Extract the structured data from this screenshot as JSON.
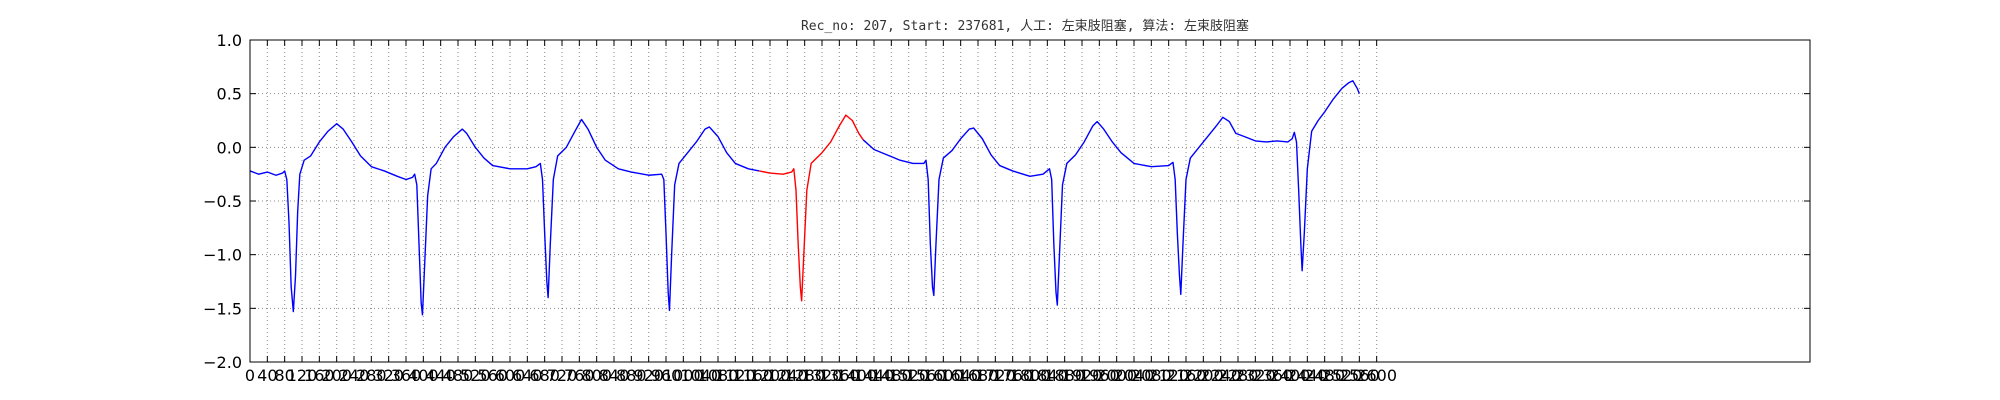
{
  "chart_data": {
    "type": "line",
    "title": "Rec_no: 207, Start: 237681, 人工: 左束肢阻塞, 算法: 左束肢阻塞",
    "xlabel": "",
    "ylabel": "",
    "xlim": [
      0,
      3600
    ],
    "ylim": [
      -2.0,
      1.0
    ],
    "grid": true,
    "yticks": [
      1.0,
      0.5,
      0.0,
      -0.5,
      -1.0,
      -1.5,
      -2.0
    ],
    "ytick_labels": [
      "1.0",
      "0.5",
      "0.0",
      "−0.5",
      "−1.0",
      "−1.5",
      "−2.0"
    ],
    "xticks": [
      0,
      40,
      80,
      120,
      160,
      200,
      240,
      280,
      320,
      360,
      400,
      440,
      480,
      520,
      560,
      600,
      640,
      680,
      720,
      760,
      800,
      840,
      880,
      920,
      960,
      1000,
      1040,
      1080,
      1120,
      1160,
      1200,
      1240,
      1280,
      1320,
      1360,
      1400,
      1440,
      1480,
      1520,
      1560,
      1600,
      1640,
      1680,
      1720,
      1760,
      1800,
      1840,
      1880,
      1920,
      1960,
      2000,
      2040,
      2080,
      2120,
      2160,
      2200,
      2240,
      2280,
      2320,
      2360,
      2400,
      2440,
      2480,
      2520,
      2560,
      2600
    ],
    "colors": {
      "normal": "#0000ff",
      "highlight": "#ff0000",
      "grid": "#000000"
    },
    "series": [
      {
        "color": "#0000ff",
        "points": [
          [
            0,
            -0.22
          ],
          [
            20,
            -0.25
          ],
          [
            40,
            -0.23
          ],
          [
            60,
            -0.26
          ],
          [
            75,
            -0.24
          ],
          [
            80,
            -0.22
          ],
          [
            85,
            -0.3
          ],
          [
            90,
            -0.7
          ],
          [
            95,
            -1.3
          ],
          [
            100,
            -1.53
          ],
          [
            105,
            -1.2
          ],
          [
            110,
            -0.6
          ],
          [
            115,
            -0.25
          ],
          [
            125,
            -0.12
          ],
          [
            140,
            -0.08
          ],
          [
            160,
            0.05
          ],
          [
            180,
            0.15
          ],
          [
            200,
            0.22
          ],
          [
            215,
            0.17
          ],
          [
            235,
            0.05
          ],
          [
            255,
            -0.08
          ],
          [
            280,
            -0.18
          ],
          [
            310,
            -0.22
          ],
          [
            340,
            -0.27
          ],
          [
            360,
            -0.3
          ],
          [
            375,
            -0.28
          ],
          [
            380,
            -0.25
          ],
          [
            385,
            -0.35
          ],
          [
            390,
            -0.9
          ],
          [
            395,
            -1.45
          ],
          [
            398,
            -1.56
          ],
          [
            403,
            -1.1
          ],
          [
            410,
            -0.45
          ],
          [
            418,
            -0.2
          ],
          [
            430,
            -0.15
          ],
          [
            450,
            0.0
          ],
          [
            470,
            0.1
          ],
          [
            490,
            0.17
          ],
          [
            500,
            0.13
          ],
          [
            520,
            0.0
          ],
          [
            540,
            -0.1
          ],
          [
            560,
            -0.17
          ],
          [
            600,
            -0.2
          ],
          [
            640,
            -0.2
          ],
          [
            660,
            -0.18
          ],
          [
            670,
            -0.15
          ],
          [
            675,
            -0.3
          ],
          [
            680,
            -0.8
          ],
          [
            685,
            -1.25
          ],
          [
            688,
            -1.4
          ],
          [
            693,
            -0.9
          ],
          [
            700,
            -0.3
          ],
          [
            710,
            -0.08
          ],
          [
            730,
            0.0
          ],
          [
            750,
            0.15
          ],
          [
            765,
            0.26
          ],
          [
            780,
            0.17
          ],
          [
            800,
            0.0
          ],
          [
            820,
            -0.12
          ],
          [
            850,
            -0.2
          ],
          [
            880,
            -0.23
          ],
          [
            920,
            -0.26
          ],
          [
            950,
            -0.25
          ],
          [
            955,
            -0.3
          ],
          [
            960,
            -0.8
          ],
          [
            965,
            -1.35
          ],
          [
            968,
            -1.52
          ],
          [
            973,
            -1.0
          ],
          [
            980,
            -0.35
          ],
          [
            990,
            -0.15
          ],
          [
            1010,
            -0.05
          ],
          [
            1030,
            0.05
          ],
          [
            1050,
            0.17
          ],
          [
            1060,
            0.19
          ],
          [
            1080,
            0.1
          ],
          [
            1100,
            -0.05
          ],
          [
            1120,
            -0.15
          ],
          [
            1150,
            -0.2
          ],
          [
            1175,
            -0.22
          ]
        ]
      },
      {
        "color": "#ff0000",
        "points": [
          [
            1175,
            -0.22
          ],
          [
            1200,
            -0.24
          ],
          [
            1230,
            -0.25
          ],
          [
            1250,
            -0.23
          ],
          [
            1255,
            -0.2
          ],
          [
            1260,
            -0.4
          ],
          [
            1265,
            -0.9
          ],
          [
            1270,
            -1.3
          ],
          [
            1273,
            -1.43
          ],
          [
            1278,
            -1.0
          ],
          [
            1285,
            -0.4
          ],
          [
            1295,
            -0.15
          ],
          [
            1320,
            -0.05
          ],
          [
            1340,
            0.05
          ],
          [
            1360,
            0.2
          ],
          [
            1375,
            0.3
          ],
          [
            1390,
            0.25
          ],
          [
            1405,
            0.13
          ],
          [
            1415,
            0.07
          ]
        ]
      },
      {
        "color": "#0000ff",
        "points": [
          [
            1415,
            0.07
          ],
          [
            1440,
            -0.02
          ],
          [
            1470,
            -0.07
          ],
          [
            1500,
            -0.12
          ],
          [
            1530,
            -0.15
          ],
          [
            1555,
            -0.15
          ],
          [
            1560,
            -0.12
          ],
          [
            1565,
            -0.3
          ],
          [
            1570,
            -0.9
          ],
          [
            1575,
            -1.3
          ],
          [
            1578,
            -1.38
          ],
          [
            1583,
            -0.9
          ],
          [
            1590,
            -0.3
          ],
          [
            1600,
            -0.1
          ],
          [
            1620,
            -0.03
          ],
          [
            1640,
            0.08
          ],
          [
            1660,
            0.17
          ],
          [
            1670,
            0.18
          ],
          [
            1690,
            0.08
          ],
          [
            1710,
            -0.07
          ],
          [
            1730,
            -0.17
          ],
          [
            1760,
            -0.22
          ],
          [
            1800,
            -0.27
          ],
          [
            1830,
            -0.25
          ],
          [
            1845,
            -0.2
          ],
          [
            1850,
            -0.3
          ],
          [
            1855,
            -0.9
          ],
          [
            1860,
            -1.35
          ],
          [
            1863,
            -1.47
          ],
          [
            1868,
            -1.0
          ],
          [
            1875,
            -0.35
          ],
          [
            1885,
            -0.15
          ],
          [
            1905,
            -0.07
          ],
          [
            1925,
            0.05
          ],
          [
            1945,
            0.2
          ],
          [
            1955,
            0.24
          ],
          [
            1970,
            0.17
          ],
          [
            1990,
            0.05
          ],
          [
            2010,
            -0.05
          ],
          [
            2040,
            -0.15
          ],
          [
            2080,
            -0.18
          ],
          [
            2120,
            -0.17
          ],
          [
            2130,
            -0.14
          ],
          [
            2135,
            -0.3
          ],
          [
            2140,
            -0.8
          ],
          [
            2145,
            -1.2
          ],
          [
            2148,
            -1.37
          ],
          [
            2153,
            -0.9
          ],
          [
            2160,
            -0.3
          ],
          [
            2170,
            -0.1
          ],
          [
            2190,
            0.0
          ],
          [
            2210,
            0.1
          ],
          [
            2230,
            0.2
          ],
          [
            2245,
            0.28
          ],
          [
            2260,
            0.24
          ],
          [
            2275,
            0.13
          ],
          [
            2295,
            0.1
          ],
          [
            2320,
            0.06
          ],
          [
            2345,
            0.05
          ],
          [
            2370,
            0.06
          ],
          [
            2395,
            0.05
          ],
          [
            2405,
            0.08
          ],
          [
            2410,
            0.14
          ],
          [
            2415,
            0.05
          ],
          [
            2420,
            -0.4
          ],
          [
            2425,
            -0.9
          ],
          [
            2428,
            -1.15
          ],
          [
            2433,
            -0.8
          ],
          [
            2440,
            -0.2
          ],
          [
            2450,
            0.15
          ],
          [
            2465,
            0.25
          ],
          [
            2480,
            0.33
          ],
          [
            2500,
            0.45
          ],
          [
            2520,
            0.55
          ],
          [
            2535,
            0.6
          ],
          [
            2545,
            0.62
          ],
          [
            2555,
            0.55
          ],
          [
            2560,
            0.5
          ]
        ]
      }
    ]
  }
}
